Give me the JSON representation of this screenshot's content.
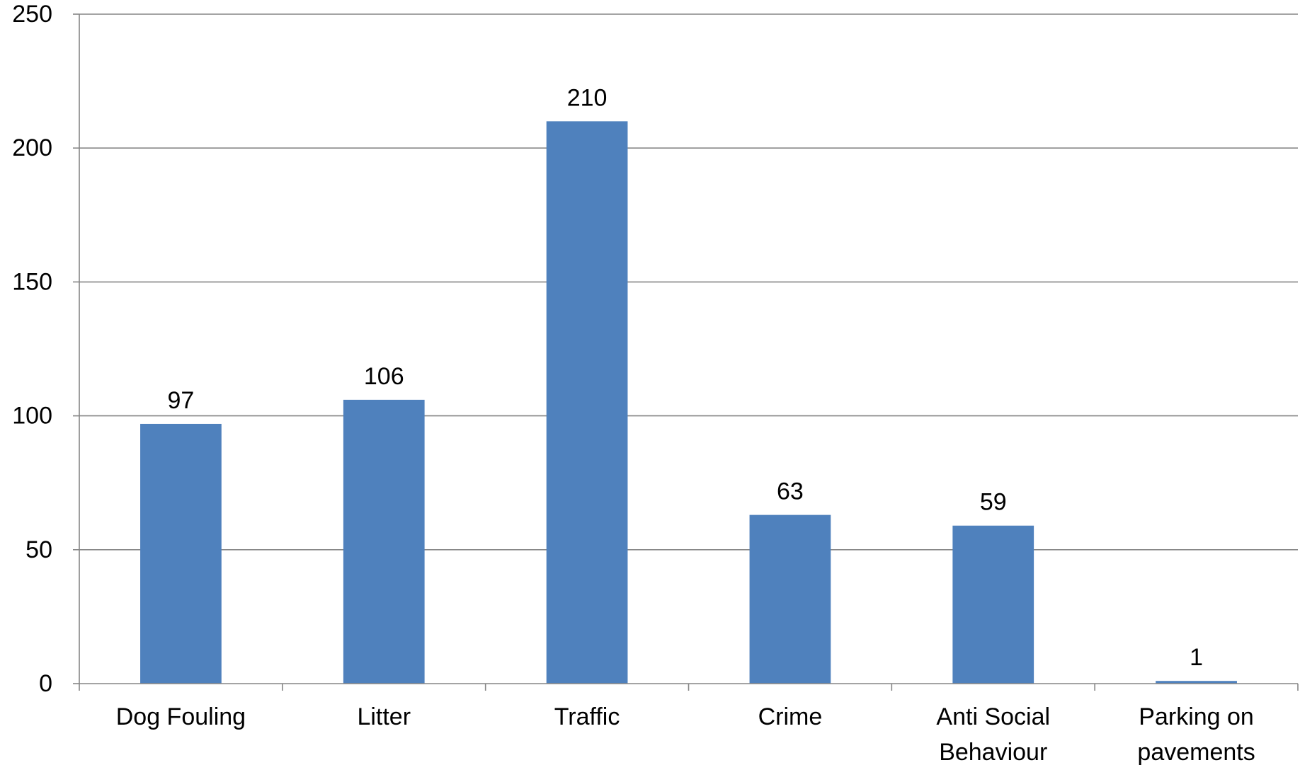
{
  "chart_data": {
    "type": "bar",
    "title": "",
    "xlabel": "",
    "ylabel": "",
    "categories": [
      [
        "Dog Fouling"
      ],
      [
        "Litter"
      ],
      [
        "Traffic"
      ],
      [
        "Crime"
      ],
      [
        "Anti Social",
        "Behaviour"
      ],
      [
        "Parking on",
        "pavements"
      ]
    ],
    "values": [
      97,
      106,
      210,
      63,
      59,
      1
    ],
    "ylim": [
      0,
      250
    ],
    "yticks": [
      0,
      50,
      100,
      150,
      200,
      250
    ],
    "grid": true,
    "legend": "none",
    "bar_color": "#4F81BD",
    "data_labels": true
  }
}
